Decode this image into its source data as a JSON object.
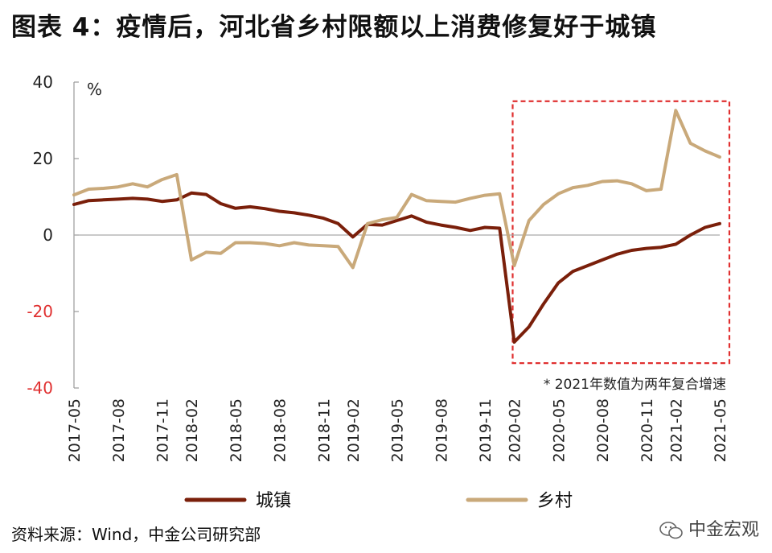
{
  "title": "图表 4：疫情后，河北省乡村限额以上消费修复好于城镇",
  "source": "资料来源：Wind，中金公司研究部",
  "brand": "中金宏观",
  "brand_icon": "wechat-icon",
  "chart_data": {
    "type": "line",
    "unit_label": "%",
    "x": [
      "2017-05",
      "2017-06",
      "2017-07",
      "2017-08",
      "2017-09",
      "2017-10",
      "2017-11",
      "2017-12",
      "2018-02",
      "2018-03",
      "2018-04",
      "2018-05",
      "2018-06",
      "2018-07",
      "2018-08",
      "2018-09",
      "2018-10",
      "2018-11",
      "2018-12",
      "2019-02",
      "2019-03",
      "2019-04",
      "2019-05",
      "2019-06",
      "2019-07",
      "2019-08",
      "2019-09",
      "2019-10",
      "2019-11",
      "2019-12",
      "2020-02",
      "2020-03",
      "2020-04",
      "2020-05",
      "2020-06",
      "2020-07",
      "2020-08",
      "2020-09",
      "2020-10",
      "2020-11",
      "2020-12",
      "2021-02",
      "2021-03",
      "2021-04",
      "2021-05"
    ],
    "xticks": [
      "2017-05",
      "2017-08",
      "2017-11",
      "2018-02",
      "2018-05",
      "2018-08",
      "2018-11",
      "2019-02",
      "2019-05",
      "2019-08",
      "2019-11",
      "2020-02",
      "2020-05",
      "2020-08",
      "2020-11",
      "2021-02",
      "2021-05"
    ],
    "ylim": [
      -40,
      40
    ],
    "yticks": [
      -40,
      -20,
      0,
      20,
      40
    ],
    "series": [
      {
        "name": "城镇",
        "color": "#7a1f0a",
        "values": [
          8,
          9,
          9.2,
          9.4,
          9.6,
          9.4,
          8.8,
          9.2,
          11,
          10.6,
          8.2,
          7,
          7.4,
          6.9,
          6.2,
          5.8,
          5.2,
          4.4,
          3,
          -0.5,
          2.8,
          2.6,
          3.8,
          5,
          3.4,
          2.6,
          2,
          1.2,
          2,
          1.8,
          -28,
          -24,
          -18,
          -12.5,
          -9.5,
          -8,
          -6.5,
          -5,
          -4,
          -3.5,
          -3.2,
          -2.4,
          0,
          2,
          3
        ]
      },
      {
        "name": "乡村",
        "color": "#c9a97a",
        "values": [
          10.5,
          12,
          12.2,
          12.6,
          13.4,
          12.6,
          14.5,
          15.8,
          -6.5,
          -4.5,
          -4.8,
          -2,
          -2,
          -2.2,
          -2.8,
          -2,
          -2.6,
          -2.8,
          -3,
          -8.5,
          3,
          4,
          4.6,
          10.6,
          9,
          8.8,
          8.6,
          9.6,
          10.4,
          10.8,
          -8,
          3.8,
          8,
          10.8,
          12.4,
          13,
          14,
          14.2,
          13.4,
          11.6,
          12,
          32.6,
          24,
          22,
          20.4
        ]
      }
    ],
    "highlight": {
      "from": "2020-02",
      "to": "2021-05",
      "color": "#e03030"
    },
    "annotation": "* 2021年数值为两年复合增速"
  }
}
